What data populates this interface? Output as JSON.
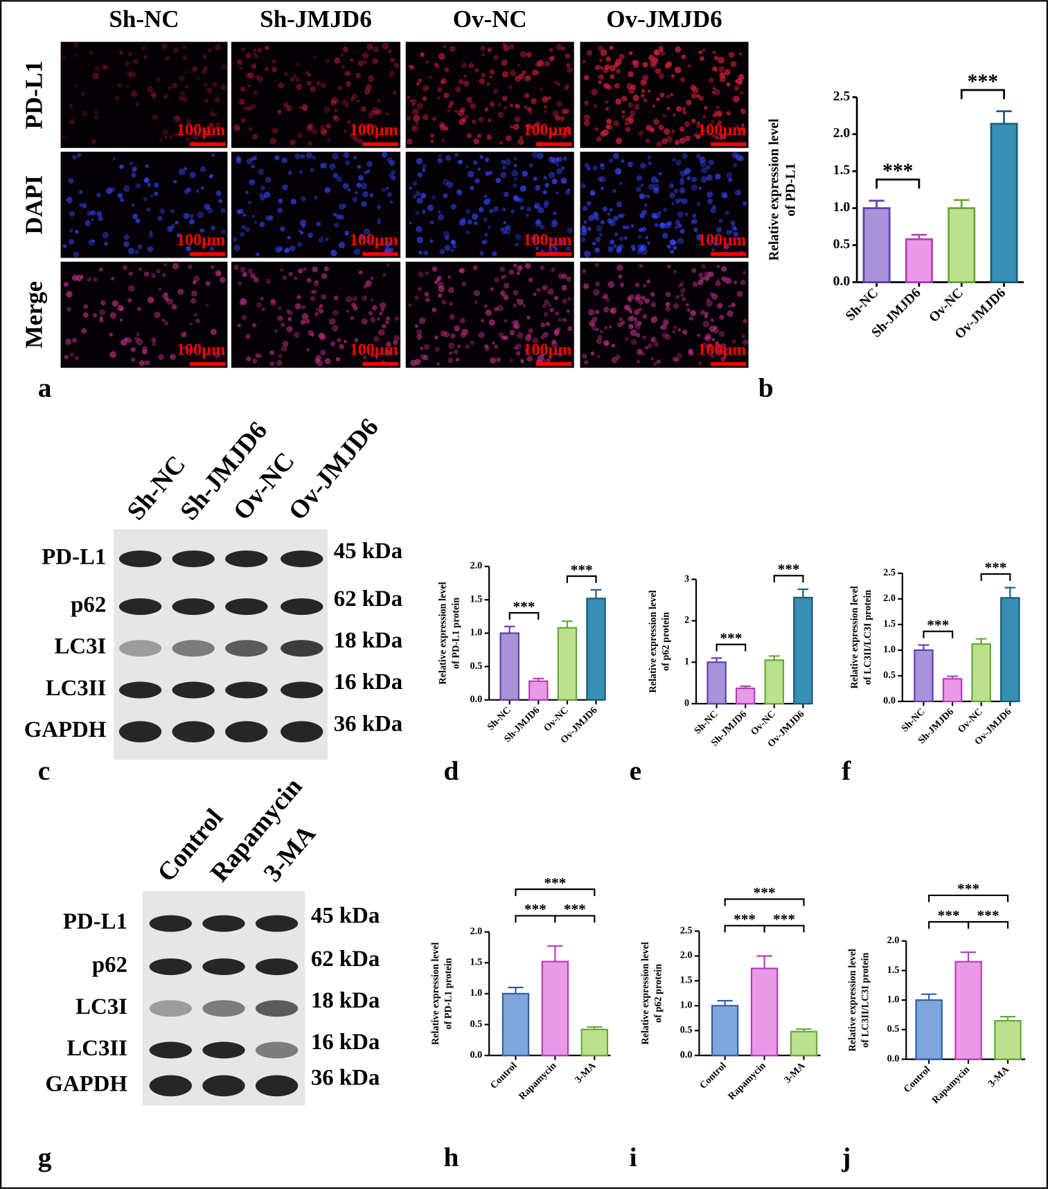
{
  "figure": {
    "image_columns": [
      "Sh-NC",
      "Sh-JMJD6",
      "Ov-NC",
      "Ov-JMJD6"
    ],
    "image_rows": [
      "PD-L1",
      "DAPI",
      "Merge"
    ],
    "scale_label": "100µm",
    "panel_letters": [
      "a",
      "b",
      "c",
      "d",
      "e",
      "f",
      "g",
      "h",
      "i",
      "j"
    ],
    "blot_c": {
      "lanes": [
        "Sh-NC",
        "Sh-JMJD6",
        "Ov-NC",
        "Ov-JMJD6"
      ],
      "bands": [
        "PD-L1",
        "p62",
        "LC3I",
        "LC3II",
        "GAPDH"
      ],
      "sizes": [
        "45 kDa",
        "62 kDa",
        "18 kDa",
        "16 kDa",
        "36 kDa"
      ]
    },
    "blot_g": {
      "lanes": [
        "Control",
        "Rapamycin",
        "3-MA"
      ],
      "bands": [
        "PD-L1",
        "p62",
        "LC3I",
        "LC3II",
        "GAPDH"
      ],
      "sizes": [
        "45 kDa",
        "62 kDa",
        "18 kDa",
        "16 kDa",
        "36 kDa"
      ]
    }
  },
  "chart_data": [
    {
      "type": "bar",
      "ylabel": [
        "Relative expression level",
        "of PD-L1"
      ],
      "categories": [
        "Sh-NC",
        "Sh-JMJD6",
        "Ov-NC",
        "Ov-JMJD6"
      ],
      "values": [
        1.0,
        0.58,
        1.0,
        2.14
      ],
      "errors": [
        0.1,
        0.06,
        0.11,
        0.17
      ],
      "colors": [
        "#a892d8",
        "#e89ae6",
        "#bde08e",
        "#3590b4"
      ],
      "edge_colors": [
        "#5f3fae",
        "#b93cb9",
        "#64a838",
        "#1d5a7a"
      ],
      "ylim": [
        0,
        2.5
      ],
      "yticks": [
        {
          "value": 0,
          "label": "0.0"
        },
        0.5,
        {
          "value": 1,
          "label": "1.0"
        },
        1.5,
        {
          "value": 2,
          "label": "2.0"
        },
        2.5
      ],
      "annotations": [
        {
          "text": "***",
          "pair": [
            0,
            1
          ]
        },
        {
          "text": "***",
          "pair": [
            2,
            3
          ]
        }
      ]
    },
    {
      "type": "bar",
      "ylabel": [
        "Relative expression level",
        "of PD-L1 protein"
      ],
      "categories": [
        "Sh-NC",
        "Sh-JMJD6",
        "Ov-NC",
        "Ov-JMJD6"
      ],
      "values": [
        1.0,
        0.28,
        1.08,
        1.52
      ],
      "errors": [
        0.1,
        0.04,
        0.1,
        0.13
      ],
      "colors": [
        "#a892d8",
        "#e89ae6",
        "#bde08e",
        "#3590b4"
      ],
      "edge_colors": [
        "#5f3fae",
        "#b93cb9",
        "#64a838",
        "#1d5a7a"
      ],
      "ylim": [
        0,
        2
      ],
      "yticks": [
        {
          "value": 0,
          "label": "0.0"
        },
        0.5,
        {
          "value": 1,
          "label": "1.0"
        },
        1.5,
        {
          "value": 2,
          "label": "2.0"
        }
      ],
      "annotations": [
        {
          "text": "***",
          "pair": [
            0,
            1
          ]
        },
        {
          "text": "***",
          "pair": [
            2,
            3
          ]
        }
      ]
    },
    {
      "type": "bar",
      "ylabel": [
        "Relative expression level",
        "of p62 protein"
      ],
      "categories": [
        "Sh-NC",
        "Sh-JMJD6",
        "Ov-NC",
        "Ov-JMJD6"
      ],
      "values": [
        1.0,
        0.37,
        1.05,
        2.56
      ],
      "errors": [
        0.1,
        0.05,
        0.1,
        0.2
      ],
      "colors": [
        "#a892d8",
        "#e89ae6",
        "#bde08e",
        "#3590b4"
      ],
      "edge_colors": [
        "#5f3fae",
        "#b93cb9",
        "#64a838",
        "#1d5a7a"
      ],
      "ylim": [
        0,
        3
      ],
      "yticks": [
        0,
        1,
        2,
        3
      ],
      "annotations": [
        {
          "text": "***",
          "pair": [
            0,
            1
          ]
        },
        {
          "text": "***",
          "pair": [
            2,
            3
          ]
        }
      ]
    },
    {
      "type": "bar",
      "ylabel": [
        "Relative expression level",
        "of LC3II/LC3I protein"
      ],
      "categories": [
        "Sh-NC",
        "Sh-JMJD6",
        "Ov-NC",
        "Ov-JMJD6"
      ],
      "values": [
        1.0,
        0.44,
        1.12,
        2.02
      ],
      "errors": [
        0.1,
        0.05,
        0.1,
        0.2
      ],
      "colors": [
        "#a892d8",
        "#e89ae6",
        "#bde08e",
        "#3590b4"
      ],
      "edge_colors": [
        "#5f3fae",
        "#b93cb9",
        "#64a838",
        "#1d5a7a"
      ],
      "ylim": [
        0,
        2.5
      ],
      "yticks": [
        {
          "value": 0,
          "label": "0.0"
        },
        0.5,
        {
          "value": 1,
          "label": "1.0"
        },
        1.5,
        {
          "value": 2,
          "label": "2.0"
        },
        2.5
      ],
      "annotations": [
        {
          "text": "***",
          "pair": [
            0,
            1
          ]
        },
        {
          "text": "***",
          "pair": [
            2,
            3
          ]
        }
      ]
    },
    {
      "type": "bar",
      "ylabel": [
        "Relative expression level",
        "of PD-L1 protein"
      ],
      "categories": [
        "Control",
        "Rapamycin",
        "3-MA"
      ],
      "values": [
        1.0,
        1.52,
        0.42
      ],
      "errors": [
        0.1,
        0.25,
        0.04
      ],
      "colors": [
        "#7ea6da",
        "#e89ae6",
        "#bde08e"
      ],
      "edge_colors": [
        "#2e5ea8",
        "#b93cb9",
        "#64a838"
      ],
      "ylim": [
        0,
        2
      ],
      "yticks": [
        {
          "value": 0,
          "label": "0.0"
        },
        0.5,
        {
          "value": 1,
          "label": "1.0"
        },
        1.5,
        {
          "value": 2,
          "label": "2.0"
        }
      ],
      "annotations": [
        {
          "text": "***",
          "pair": [
            0,
            1
          ]
        },
        {
          "text": "***",
          "pair": [
            1,
            2
          ]
        },
        {
          "text": "***",
          "pair": [
            0,
            2
          ]
        }
      ]
    },
    {
      "type": "bar",
      "ylabel": [
        "Relative expression level",
        "of p62 protein"
      ],
      "categories": [
        "Control",
        "Rapamycin",
        "3-MA"
      ],
      "values": [
        1.0,
        1.75,
        0.48
      ],
      "errors": [
        0.1,
        0.25,
        0.05
      ],
      "colors": [
        "#7ea6da",
        "#e89ae6",
        "#bde08e"
      ],
      "edge_colors": [
        "#2e5ea8",
        "#b93cb9",
        "#64a838"
      ],
      "ylim": [
        0,
        2.5
      ],
      "yticks": [
        {
          "value": 0,
          "label": "0.0"
        },
        0.5,
        {
          "value": 1,
          "label": "1.0"
        },
        1.5,
        {
          "value": 2,
          "label": "2.0"
        },
        2.5
      ],
      "annotations": [
        {
          "text": "***",
          "pair": [
            0,
            1
          ]
        },
        {
          "text": "***",
          "pair": [
            1,
            2
          ]
        },
        {
          "text": "***",
          "pair": [
            0,
            2
          ]
        }
      ]
    },
    {
      "type": "bar",
      "ylabel": [
        "Relative expression level",
        "of LC3II/LC3I protein"
      ],
      "categories": [
        "Control",
        "Rapamycin",
        "3-MA"
      ],
      "values": [
        1.0,
        1.65,
        0.65
      ],
      "errors": [
        0.1,
        0.16,
        0.07
      ],
      "colors": [
        "#7ea6da",
        "#e89ae6",
        "#bde08e"
      ],
      "edge_colors": [
        "#2e5ea8",
        "#b93cb9",
        "#64a838"
      ],
      "ylim": [
        0,
        2
      ],
      "yticks": [
        {
          "value": 0,
          "label": "0.0"
        },
        0.5,
        {
          "value": 1,
          "label": "1.0"
        },
        1.5,
        {
          "value": 2,
          "label": "2.0"
        }
      ],
      "annotations": [
        {
          "text": "***",
          "pair": [
            0,
            1
          ]
        },
        {
          "text": "***",
          "pair": [
            1,
            2
          ]
        },
        {
          "text": "***",
          "pair": [
            0,
            2
          ]
        }
      ]
    }
  ]
}
